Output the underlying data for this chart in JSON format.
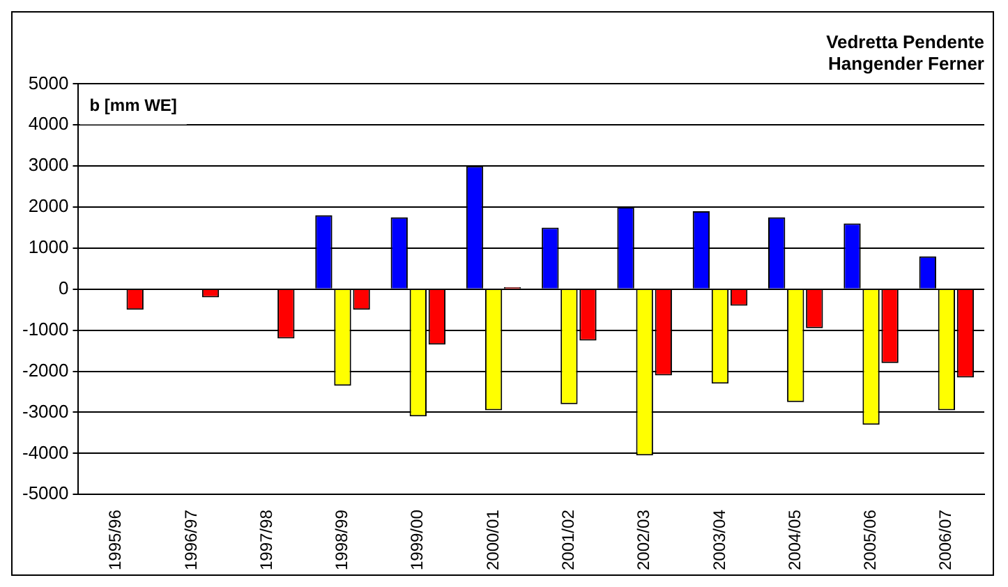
{
  "chart_data": {
    "type": "bar",
    "title": [
      "Vedretta Pendente",
      "Hangender Ferner"
    ],
    "ylabel": "b [mm WE]",
    "categories": [
      "1995/96",
      "1996/97",
      "1997/98",
      "1998/99",
      "1999/00",
      "2000/01",
      "2001/02",
      "2002/03",
      "2003/04",
      "2004/05",
      "2005/06",
      "2006/07"
    ],
    "series": [
      {
        "color": "#0000ff",
        "values": [
          null,
          null,
          null,
          1800,
          1750,
          3000,
          1500,
          2000,
          1900,
          1750,
          1600,
          800
        ]
      },
      {
        "color": "#ffff00",
        "values": [
          null,
          null,
          null,
          -2350,
          -3100,
          -2950,
          -2800,
          -4050,
          -2300,
          -2750,
          -3300,
          -2950
        ]
      },
      {
        "color": "#ff0000",
        "values": [
          -500,
          -200,
          -1200,
          -500,
          -1350,
          50,
          -1250,
          -2100,
          -400,
          -950,
          -1800,
          -2150
        ]
      }
    ],
    "ylim": [
      -5000,
      5000
    ],
    "yticks": [
      -5000,
      -4000,
      -3000,
      -2000,
      -1000,
      0,
      1000,
      2000,
      3000,
      4000,
      5000
    ],
    "grid": "y",
    "legend": false
  }
}
